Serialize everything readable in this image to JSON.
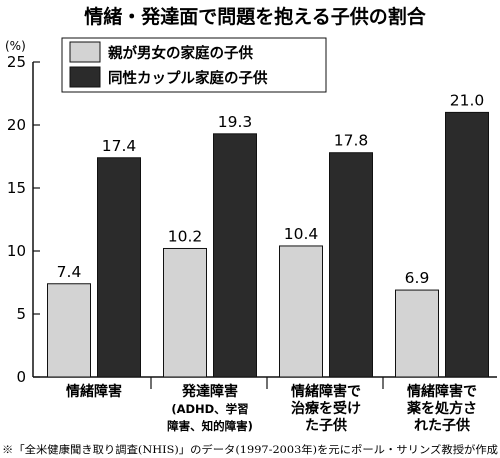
{
  "chart_data": {
    "type": "bar",
    "title": "情緒・発達面で問題を抱える子供の割合",
    "unit_label": "(%)",
    "ylim": [
      0,
      25
    ],
    "yticks": [
      "0",
      "5",
      "10",
      "15",
      "20",
      "25"
    ],
    "legend_position": "top-left",
    "categories": [
      [
        "情緒障害"
      ],
      [
        "発達障害",
        "(ADHD、学習",
        "障害、知的障害)"
      ],
      [
        "情緒障害で",
        "治療を受け",
        "た子供"
      ],
      [
        "情緒障害で",
        "薬を処方さ",
        "れた子供"
      ]
    ],
    "series": [
      {
        "name": "親が男女の家庭の子供",
        "values": [
          7.4,
          10.2,
          10.4,
          6.9
        ],
        "labels": [
          "7.4",
          "10.2",
          "10.4",
          "6.9"
        ],
        "color": "#d3d3d3"
      },
      {
        "name": "同性カップル家庭の子供",
        "values": [
          17.4,
          19.3,
          17.8,
          21.0
        ],
        "labels": [
          "17.4",
          "19.3",
          "17.8",
          "21.0"
        ],
        "color": "#2b2b2b"
      }
    ],
    "footnote": "※「全米健康聞き取り調査(NHIS)」のデータ(1997-2003年)を元にポール・サリンズ教授が作成"
  }
}
